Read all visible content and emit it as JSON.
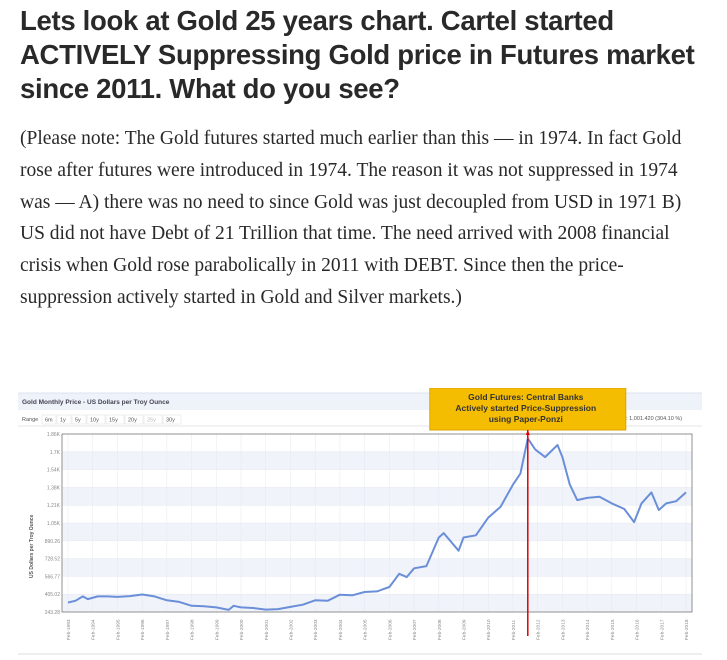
{
  "article": {
    "title": "Lets look at Gold 25 years chart. Cartel started ACTIVELY Suppressing Gold price in Futures market since 2011. What do you see?",
    "body": "(Please note: The Gold futures started much earlier than this — in 1974. In fact Gold rose after futures were introduced in 1974. The reason it was not suppressed in 1974 was — A) there was no need to since Gold was just decoupled from USD in 1971 B) US did not have Debt of 21 Trillion that time. The need arrived with 2008 financial crisis when Gold rose parabolically in 2011 with DEBT. Since then the price-suppression actively started in Gold and Silver markets.)"
  },
  "colors": {
    "line": "#6a8fd8",
    "annotation": "#f5bd02",
    "marker": "#e00000"
  },
  "chart_data": {
    "type": "line",
    "title": "Gold Monthly Price - US Dollars per Troy Ounce",
    "range_label": "Range",
    "range_buttons": [
      "6m",
      "1y",
      "5y",
      "10y",
      "15y",
      "20y",
      "25y",
      "30y"
    ],
    "range_selected": "25y",
    "summary": "10: 1,001.420 (304.10 %)",
    "ylabel": "US Dollars per Troy Ounce",
    "ylim": [
      243.28,
      1860
    ],
    "yticks": [
      "1.86K",
      "1.7K",
      "1.54K",
      "1.38K",
      "1.21K",
      "1.05K",
      "890.26",
      "728.52",
      "566.77",
      "405.02",
      "243.28"
    ],
    "xticks": [
      "Feb-1993",
      "Feb-1994",
      "Feb-1995",
      "Feb-1996",
      "Feb-1997",
      "Feb-1998",
      "Feb-1999",
      "Feb-2000",
      "Feb-2001",
      "Feb-2002",
      "Feb-2003",
      "Feb-2004",
      "Feb-2005",
      "Feb-2006",
      "Feb-2007",
      "Feb-2008",
      "Feb-2009",
      "Feb-2010",
      "Feb-2011",
      "Feb-2012",
      "Feb-2013",
      "Feb-2014",
      "Feb-2015",
      "Feb-2016",
      "Feb-2017",
      "Feb-2018"
    ],
    "xlim": [
      1993,
      2018
    ],
    "x": [
      1993,
      1993.3,
      1993.6,
      1993.8,
      1994.2,
      1994.6,
      1995,
      1995.5,
      1996,
      1996.5,
      1997,
      1997.5,
      1998,
      1998.5,
      1999,
      1999.5,
      1999.7,
      2000,
      2000.5,
      2001,
      2001.5,
      2002,
      2002.5,
      2003,
      2003.5,
      2004,
      2004.5,
      2005,
      2005.5,
      2006,
      2006.4,
      2006.7,
      2007,
      2007.5,
      2008,
      2008.2,
      2008.8,
      2009,
      2009.5,
      2010,
      2010.5,
      2011,
      2011.3,
      2011.6,
      2011.9,
      2012.3,
      2012.8,
      2013,
      2013.3,
      2013.6,
      2014,
      2014.5,
      2015,
      2015.5,
      2015.9,
      2016.2,
      2016.6,
      2016.9,
      2017.2,
      2017.6,
      2018
    ],
    "y": [
      330,
      345,
      385,
      360,
      385,
      385,
      380,
      388,
      402,
      385,
      350,
      335,
      300,
      295,
      285,
      262,
      300,
      285,
      280,
      265,
      270,
      290,
      310,
      350,
      345,
      400,
      395,
      425,
      430,
      470,
      590,
      560,
      640,
      660,
      920,
      960,
      800,
      920,
      940,
      1100,
      1200,
      1400,
      1500,
      1820,
      1720,
      1650,
      1760,
      1650,
      1400,
      1260,
      1280,
      1290,
      1230,
      1180,
      1060,
      1230,
      1330,
      1170,
      1230,
      1250,
      1330
    ],
    "annotation": {
      "text": [
        "Gold Futures: Central Banks",
        "Actively started Price-Suppression",
        "using Paper-Ponzi"
      ],
      "x": 2011.6
    }
  }
}
